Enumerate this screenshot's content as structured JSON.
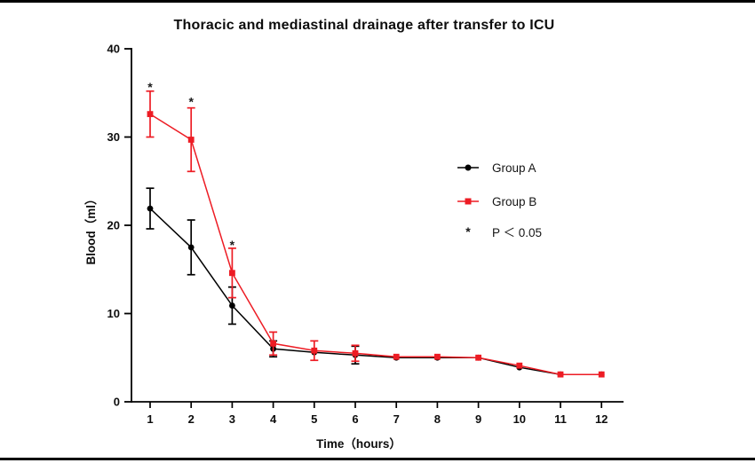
{
  "chart_data": {
    "type": "line",
    "title": "Thoracic and mediastinal drainage after transfer to ICU",
    "xlabel": "Time（hours）",
    "ylabel": "Blood（ml）",
    "x": [
      1,
      2,
      3,
      4,
      5,
      6,
      7,
      8,
      9,
      10,
      11,
      12
    ],
    "xticks": [
      1,
      2,
      3,
      4,
      5,
      6,
      7,
      8,
      9,
      10,
      11,
      12
    ],
    "yticks": [
      0,
      10,
      20,
      30,
      40
    ],
    "xlim": [
      0.55,
      12.55
    ],
    "ylim": [
      0,
      40
    ],
    "grid": false,
    "axis_color": "#000000",
    "series": [
      {
        "name": "Group A",
        "color": "#000000",
        "marker": "circle",
        "values": [
          21.9,
          17.5,
          10.9,
          6.0,
          5.6,
          5.3,
          5.0,
          5.0,
          5.0,
          3.9,
          3.1,
          3.1
        ],
        "errors": [
          2.3,
          3.1,
          2.1,
          0.9,
          0,
          1.0,
          0,
          0,
          0,
          0,
          0,
          0
        ]
      },
      {
        "name": "Group B",
        "color": "#ed1c24",
        "marker": "square",
        "values": [
          32.6,
          29.7,
          14.6,
          6.6,
          5.8,
          5.5,
          5.1,
          5.1,
          5.0,
          4.1,
          3.1,
          3.1
        ],
        "errors": [
          2.6,
          3.6,
          2.8,
          1.3,
          1.1,
          0.9,
          0,
          0,
          0,
          0,
          0,
          0
        ]
      }
    ],
    "annotations": [
      {
        "text": "*",
        "x": 1,
        "y": 35.9
      },
      {
        "text": "*",
        "x": 2,
        "y": 34.2
      },
      {
        "text": "*",
        "x": 3,
        "y": 18.0
      }
    ],
    "legend": {
      "position": "right-center",
      "note": {
        "symbol": "*",
        "text": "P ＜ 0.05"
      }
    }
  }
}
